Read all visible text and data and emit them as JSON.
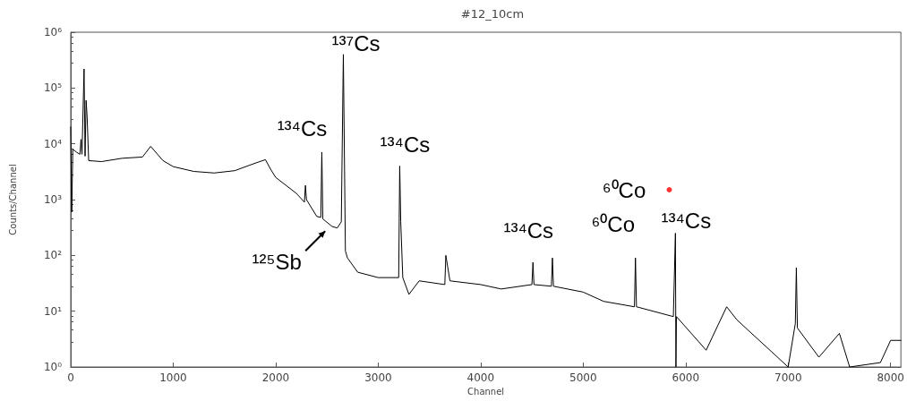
{
  "chart_data": {
    "type": "line",
    "title": "#12_10cm",
    "xlabel": "Channel",
    "ylabel": "Counts/Channel",
    "log": "y",
    "grid": false,
    "marker": "none",
    "line_style": "solid",
    "xlim": [
      0,
      8100
    ],
    "xticks": [
      0,
      1000,
      2000,
      3000,
      4000,
      5000,
      6000,
      7000,
      8000
    ],
    "ylim": [
      1,
      1000000
    ],
    "yticks": [
      {
        "value": 1,
        "label": "10⁰"
      },
      {
        "value": 10,
        "label": "10¹"
      },
      {
        "value": 100,
        "label": "10²"
      },
      {
        "value": 1000,
        "label": "10³"
      },
      {
        "value": 10000,
        "label": "10⁴"
      },
      {
        "value": 100000,
        "label": "10⁵"
      },
      {
        "value": 1000000,
        "label": "10⁶"
      }
    ],
    "series": [
      {
        "color": "#000000",
        "x": [
          0,
          10,
          20,
          60,
          90,
          100,
          110,
          130,
          140,
          150,
          160,
          175,
          300,
          500,
          700,
          780,
          900,
          1000,
          1200,
          1400,
          1600,
          1800,
          1900,
          1950,
          2000,
          2200,
          2280,
          2290,
          2300,
          2400,
          2440,
          2450,
          2460,
          2550,
          2600,
          2640,
          2660,
          2680,
          2700,
          2800,
          3000,
          3200,
          3210,
          3220,
          3240,
          3300,
          3400,
          3650,
          3660,
          3700,
          4000,
          4200,
          4500,
          4510,
          4520,
          4690,
          4700,
          4710,
          5000,
          5200,
          5500,
          5510,
          5520,
          5880,
          5900,
          5905,
          5910,
          6200,
          6400,
          6500,
          7000,
          7070,
          7080,
          7090,
          7300,
          7500,
          7600,
          7900,
          8000,
          8100
        ],
        "values": [
          20000,
          600,
          8000,
          7000,
          6500,
          12000,
          6500,
          220000,
          6000,
          60000,
          30000,
          5000,
          4800,
          5500,
          5800,
          9000,
          5000,
          3900,
          3200,
          3000,
          3300,
          4500,
          5200,
          3500,
          2500,
          1300,
          900,
          1800,
          1000,
          500,
          480,
          7100,
          450,
          330,
          310,
          400,
          400000,
          120,
          90,
          50,
          40,
          40,
          4000,
          400,
          40,
          20,
          35,
          30,
          100,
          35,
          30,
          25,
          30,
          75,
          30,
          28,
          90,
          28,
          22,
          15,
          12,
          90,
          12,
          8,
          250,
          1,
          8,
          2,
          12,
          7,
          1,
          6,
          60,
          5,
          1.5,
          4,
          1,
          1.2,
          3,
          3
        ]
      },
      {
        "type": "scatter",
        "color": "#ff0000",
        "x": [
          5840
        ],
        "values": [
          1500
        ]
      }
    ],
    "annotations": [
      {
        "text": "¹³⁷Cs",
        "x": 2660,
        "y": 400000
      },
      {
        "text": "¹³⁴Cs",
        "x": 2450,
        "y": 7100
      },
      {
        "text": "¹³⁴Cs",
        "x": 3210,
        "y": 4000
      },
      {
        "text": "¹²⁵Sb",
        "x": 2500,
        "y": 340
      },
      {
        "text": "¹³⁴Cs",
        "x": 4510,
        "y": 75
      },
      {
        "text": "⁶⁰Co",
        "x": 5510,
        "y": 90
      },
      {
        "text": "¹³⁴Cs",
        "x": 5900,
        "y": 250
      },
      "⁶⁰Co"
    ]
  }
}
